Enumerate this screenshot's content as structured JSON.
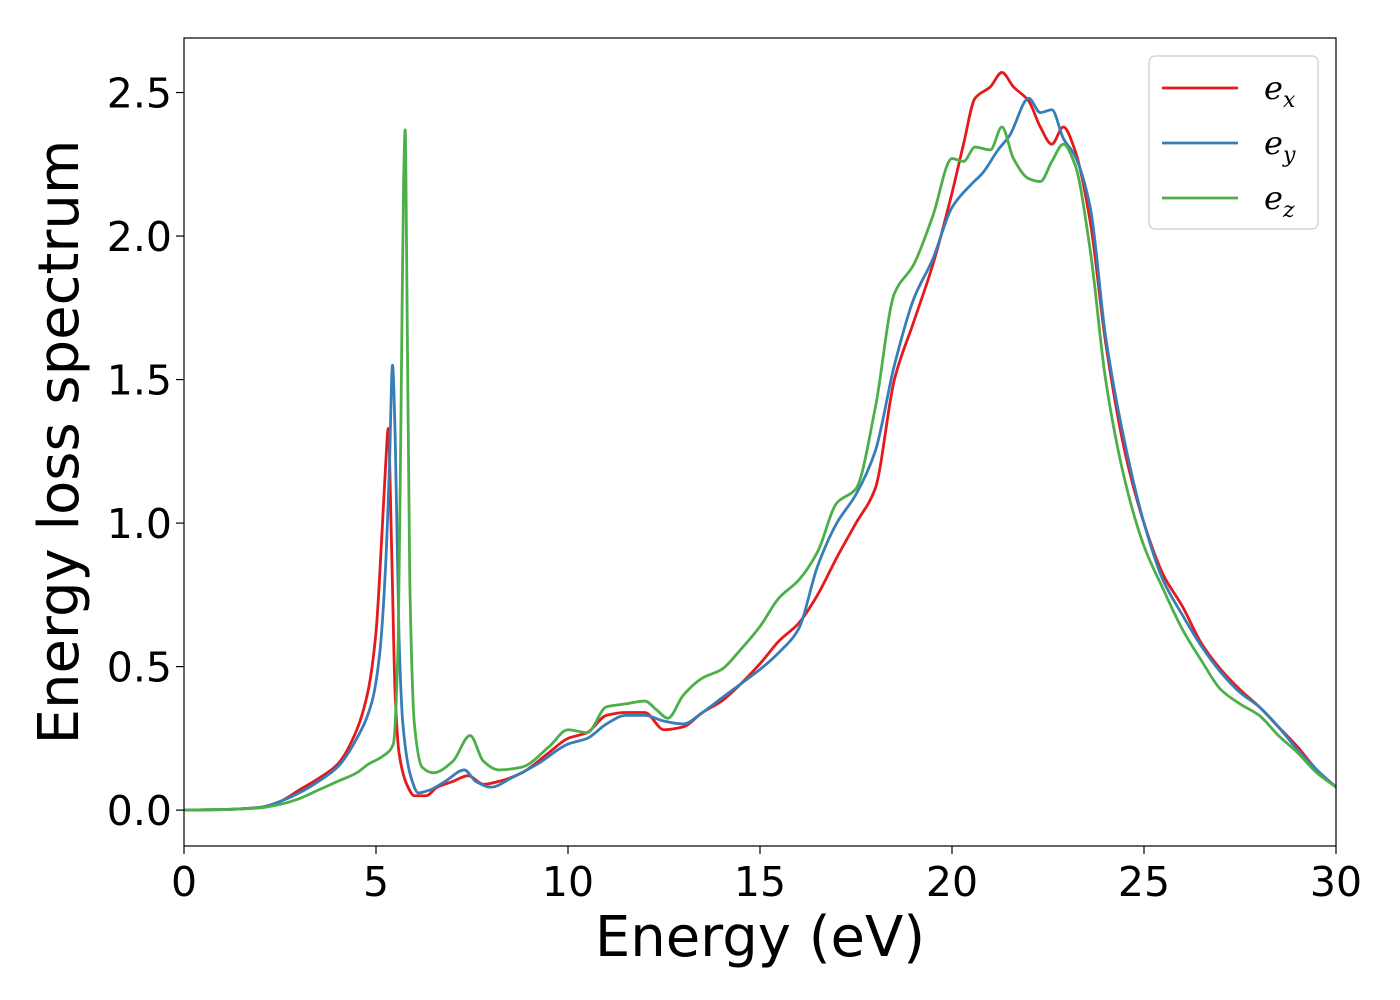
{
  "chart_data": {
    "type": "line",
    "xlabel": "Energy (eV)",
    "ylabel": "Energy loss spectrum",
    "xlim": [
      0,
      30
    ],
    "ylim": [
      -0.125,
      2.69
    ],
    "xticks": [
      0,
      5,
      10,
      15,
      20,
      25,
      30
    ],
    "xtick_labels": [
      "0",
      "5",
      "10",
      "15",
      "20",
      "25",
      "30"
    ],
    "yticks": [
      0.0,
      0.5,
      1.0,
      1.5,
      2.0,
      2.5
    ],
    "ytick_labels": [
      "0.0",
      "0.5",
      "1.0",
      "1.5",
      "2.0",
      "2.5"
    ],
    "grid": false,
    "legend_position": "top-right",
    "series": [
      {
        "name": "e",
        "subscript": "x",
        "color": "#e41a1c",
        "x": [
          0,
          1,
          2,
          2.5,
          3,
          3.5,
          4,
          4.5,
          4.8,
          5.0,
          5.15,
          5.25,
          5.32,
          5.4,
          5.5,
          5.6,
          5.8,
          6.0,
          6.3,
          6.6,
          7,
          7.4,
          7.8,
          8.2,
          8.8,
          9.5,
          10,
          10.5,
          11,
          11.5,
          12,
          12.5,
          13,
          13.5,
          14,
          14.5,
          15,
          15.5,
          16,
          16.5,
          17,
          17.5,
          18,
          18.5,
          19,
          19.5,
          20,
          20.3,
          20.6,
          21,
          21.3,
          21.6,
          22,
          22.3,
          22.6,
          22.9,
          23.2,
          23.6,
          24,
          24.5,
          25,
          25.5,
          26,
          26.5,
          27,
          27.5,
          28,
          28.5,
          29,
          29.5,
          30
        ],
        "values": [
          0.0,
          0.002,
          0.01,
          0.03,
          0.07,
          0.11,
          0.16,
          0.28,
          0.42,
          0.62,
          0.95,
          1.2,
          1.33,
          0.95,
          0.4,
          0.2,
          0.09,
          0.05,
          0.05,
          0.08,
          0.1,
          0.12,
          0.09,
          0.1,
          0.13,
          0.2,
          0.25,
          0.27,
          0.33,
          0.34,
          0.34,
          0.28,
          0.29,
          0.34,
          0.38,
          0.44,
          0.51,
          0.59,
          0.65,
          0.75,
          0.88,
          1.0,
          1.12,
          1.5,
          1.7,
          1.9,
          2.15,
          2.32,
          2.48,
          2.52,
          2.57,
          2.52,
          2.47,
          2.38,
          2.32,
          2.38,
          2.3,
          2.05,
          1.63,
          1.25,
          1.0,
          0.82,
          0.71,
          0.58,
          0.49,
          0.42,
          0.36,
          0.29,
          0.22,
          0.14,
          0.08
        ]
      },
      {
        "name": "e",
        "subscript": "y",
        "color": "#377eb8",
        "x": [
          0,
          1,
          2,
          2.5,
          3,
          3.5,
          4,
          4.5,
          4.9,
          5.1,
          5.25,
          5.35,
          5.43,
          5.5,
          5.6,
          5.7,
          5.9,
          6.1,
          6.4,
          6.8,
          7.3,
          7.6,
          8,
          8.5,
          9.2,
          10,
          10.5,
          11,
          11.5,
          12,
          12.5,
          13,
          13.5,
          14,
          14.5,
          15,
          15.5,
          16,
          16.5,
          17,
          17.5,
          18,
          18.5,
          19,
          19.5,
          20,
          20.5,
          20.8,
          21.2,
          21.5,
          22,
          22.3,
          22.6,
          22.9,
          23.2,
          23.6,
          24,
          24.5,
          25,
          25.5,
          26,
          26.5,
          27,
          27.5,
          28,
          28.5,
          29,
          29.5,
          30
        ],
        "values": [
          0.0,
          0.002,
          0.01,
          0.03,
          0.06,
          0.1,
          0.15,
          0.25,
          0.38,
          0.55,
          0.85,
          1.2,
          1.55,
          1.3,
          0.6,
          0.3,
          0.12,
          0.06,
          0.07,
          0.1,
          0.14,
          0.1,
          0.08,
          0.11,
          0.16,
          0.23,
          0.25,
          0.3,
          0.33,
          0.33,
          0.31,
          0.3,
          0.34,
          0.39,
          0.44,
          0.49,
          0.55,
          0.63,
          0.85,
          1.0,
          1.1,
          1.25,
          1.55,
          1.78,
          1.92,
          2.1,
          2.18,
          2.22,
          2.3,
          2.35,
          2.48,
          2.43,
          2.44,
          2.34,
          2.28,
          2.1,
          1.65,
          1.28,
          1.0,
          0.8,
          0.68,
          0.57,
          0.48,
          0.41,
          0.36,
          0.29,
          0.21,
          0.14,
          0.08
        ]
      },
      {
        "name": "e",
        "subscript": "z",
        "color": "#4daf4a",
        "x": [
          0,
          1,
          2,
          2.5,
          3,
          3.5,
          4,
          4.5,
          4.8,
          5.2,
          5.45,
          5.58,
          5.66,
          5.72,
          5.76,
          5.8,
          5.88,
          6.0,
          6.2,
          6.5,
          7,
          7.45,
          7.8,
          8.2,
          8.8,
          9.5,
          10,
          10.5,
          11,
          11.5,
          12,
          12.3,
          12.6,
          13,
          13.5,
          14,
          14.5,
          15,
          15.5,
          16,
          16.5,
          17,
          17.5,
          18,
          18.5,
          19,
          19.5,
          20,
          20.3,
          20.6,
          21,
          21.3,
          21.6,
          22,
          22.3,
          22.6,
          22.9,
          23.2,
          23.6,
          24,
          24.5,
          25,
          25.5,
          26,
          26.5,
          27,
          27.5,
          28,
          28.5,
          29,
          29.5,
          30
        ],
        "values": [
          0.0,
          0.002,
          0.008,
          0.02,
          0.04,
          0.07,
          0.1,
          0.13,
          0.16,
          0.19,
          0.23,
          0.6,
          1.5,
          2.2,
          2.37,
          1.9,
          0.8,
          0.3,
          0.15,
          0.13,
          0.17,
          0.26,
          0.17,
          0.14,
          0.15,
          0.22,
          0.28,
          0.27,
          0.36,
          0.37,
          0.38,
          0.35,
          0.32,
          0.4,
          0.46,
          0.49,
          0.56,
          0.64,
          0.74,
          0.8,
          0.9,
          1.07,
          1.12,
          1.4,
          1.8,
          1.9,
          2.07,
          2.27,
          2.26,
          2.31,
          2.3,
          2.38,
          2.27,
          2.2,
          2.19,
          2.26,
          2.32,
          2.25,
          1.95,
          1.5,
          1.15,
          0.92,
          0.77,
          0.63,
          0.52,
          0.42,
          0.37,
          0.33,
          0.26,
          0.2,
          0.13,
          0.08
        ]
      }
    ]
  }
}
